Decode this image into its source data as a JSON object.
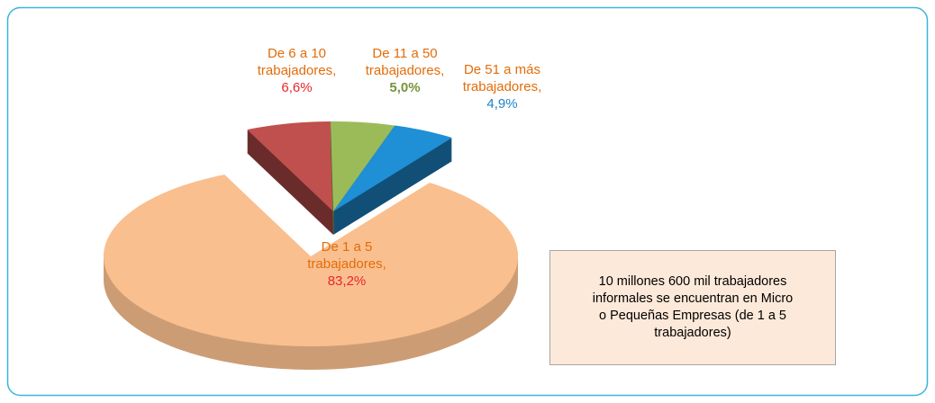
{
  "chart_data": {
    "type": "pie3d",
    "categories": [
      "De 1 a 5 trabajadores,",
      "De 6 a 10 trabajadores,",
      "De 11 a 50 trabajadores,",
      "De 51 a más trabajadores,"
    ],
    "values": [
      83.2,
      6.6,
      5.0,
      4.9
    ],
    "value_labels": [
      "83,2%",
      "6,6%",
      "5,0%",
      "4,9%"
    ],
    "colors": [
      "#f9bf8f",
      "#c0504d",
      "#9bbb59",
      "#1f8fd6"
    ],
    "annotation": "10 millones 600 mil trabajadores informales  se  encuentran en Micro o Pequeñas Empresas (de 1 a 5 trabajadores)"
  }
}
